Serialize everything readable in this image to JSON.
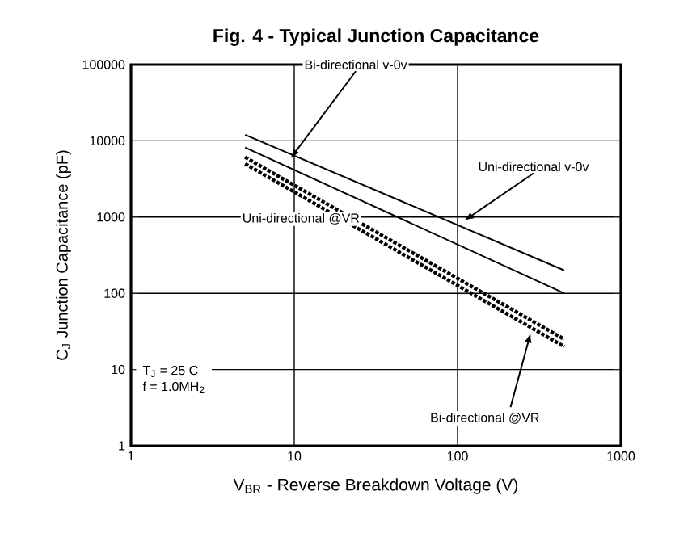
{
  "chart_data": {
    "type": "line",
    "title": "Fig. 4 - Typical Junction Capacitance",
    "xlabel": "V$_{BR}$ - Reverse Breakdown Voltage (V)",
    "ylabel": "C$_{J}$ Junction Capacitance (pF)",
    "log": "xy",
    "grid": true,
    "legend": false,
    "marker": "none",
    "xlim": [
      1,
      1000
    ],
    "xticks": [
      1,
      10,
      100,
      1000
    ],
    "ylim": [
      1,
      100000
    ],
    "yticks": [
      1,
      10,
      100,
      1000,
      10000,
      100000
    ],
    "x": [
      5,
      450
    ],
    "series": [
      {
        "color": "#000000",
        "line_style": "solid",
        "values": [
          12000,
          200
        ]
      },
      {
        "color": "#000000",
        "line_style": "solid",
        "values": [
          8200,
          100
        ]
      },
      {
        "name": "Uni-directional @VR",
        "color": "#000000",
        "line_style": "dotted",
        "values": [
          6100,
          25
        ]
      },
      {
        "name": "Bi-directional @VR",
        "color": "#000000",
        "line_style": "dotted",
        "values": [
          5000,
          20
        ]
      }
    ],
    "annotations": [
      "T$_{J}$ = 25 C",
      "f = 1.0MH$_{2}$",
      {
        "text": "Bi-directional v-0v",
        "x": 9.5,
        "y": 5900
      },
      {
        "text": "Uni-directional v-0v",
        "x": 110,
        "y": 900
      }
    ]
  }
}
